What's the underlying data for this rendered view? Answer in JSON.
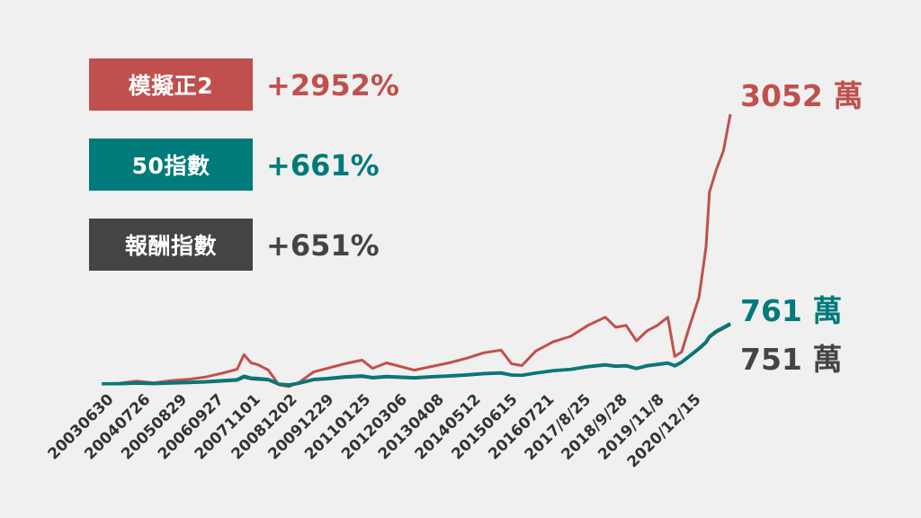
{
  "colors": {
    "red": "#c0504d",
    "teal": "#007a7a",
    "dark": "#444444",
    "background": "#f0f0f0"
  },
  "legend": [
    {
      "label": "模擬正2",
      "pct": "+2952%"
    },
    {
      "label": "50指數",
      "pct": "+661%"
    },
    {
      "label": "報酬指數",
      "pct": "+651%"
    }
  ],
  "end_labels": {
    "red": "3052 萬",
    "teal": "761 萬",
    "dark": "751 萬"
  },
  "chart_data": {
    "type": "line",
    "title": "",
    "xlabel": "",
    "ylabel": "",
    "x_tick_labels": [
      "20030630",
      "20040726",
      "20050829",
      "20060927",
      "20071101",
      "20081202",
      "20091229",
      "20110125",
      "20120306",
      "20130408",
      "20140512",
      "20150615",
      "20160721",
      "2017/8/25",
      "2018/9/28",
      "2019/11/8",
      "2020/12/15"
    ],
    "x": [
      2003.5,
      2004.0,
      2004.5,
      2005.0,
      2005.5,
      2006.0,
      2006.5,
      2007.0,
      2007.4,
      2007.6,
      2007.8,
      2008.0,
      2008.3,
      2008.6,
      2008.9,
      2009.2,
      2009.6,
      2010.0,
      2010.5,
      2011.0,
      2011.3,
      2011.7,
      2012.0,
      2012.5,
      2013.0,
      2013.5,
      2014.0,
      2014.5,
      2015.0,
      2015.3,
      2015.6,
      2016.0,
      2016.5,
      2017.0,
      2017.5,
      2018.0,
      2018.3,
      2018.6,
      2018.9,
      2019.2,
      2019.5,
      2019.8,
      2020.0,
      2020.2,
      2020.4,
      2020.7,
      2020.9,
      2021.0,
      2021.2,
      2021.4,
      2021.6
    ],
    "ylim": [
      0,
      3200
    ],
    "series": [
      {
        "values": [
          100,
          105,
          130,
          110,
          135,
          150,
          175,
          220,
          260,
          420,
          330,
          310,
          250,
          90,
          70,
          120,
          230,
          270,
          320,
          360,
          270,
          330,
          300,
          250,
          290,
          330,
          380,
          440,
          470,
          320,
          300,
          460,
          560,
          620,
          740,
          830,
          720,
          740,
          570,
          680,
          740,
          830,
          400,
          450,
          700,
          1050,
          1600,
          2200,
          2450,
          2650,
          3052
        ]
      },
      {
        "values": [
          100,
          102,
          110,
          104,
          112,
          118,
          125,
          138,
          147,
          185,
          165,
          160,
          150,
          98,
          90,
          110,
          150,
          160,
          178,
          188,
          170,
          182,
          177,
          168,
          180,
          188,
          200,
          215,
          222,
          198,
          195,
          220,
          245,
          260,
          290,
          310,
          295,
          300,
          270,
          300,
          315,
          330,
          300,
          340,
          400,
          490,
          560,
          620,
          680,
          720,
          761
        ]
      },
      {
        "values": [
          100,
          101,
          107,
          102,
          108,
          113,
          120,
          132,
          140,
          175,
          157,
          152,
          144,
          96,
          88,
          107,
          145,
          155,
          172,
          182,
          165,
          177,
          172,
          163,
          176,
          184,
          196,
          211,
          218,
          196,
          193,
          218,
          243,
          258,
          287,
          306,
          291,
          296,
          267,
          296,
          311,
          326,
          296,
          336,
          395,
          483,
          553,
          612,
          671,
          711,
          751
        ]
      }
    ]
  }
}
